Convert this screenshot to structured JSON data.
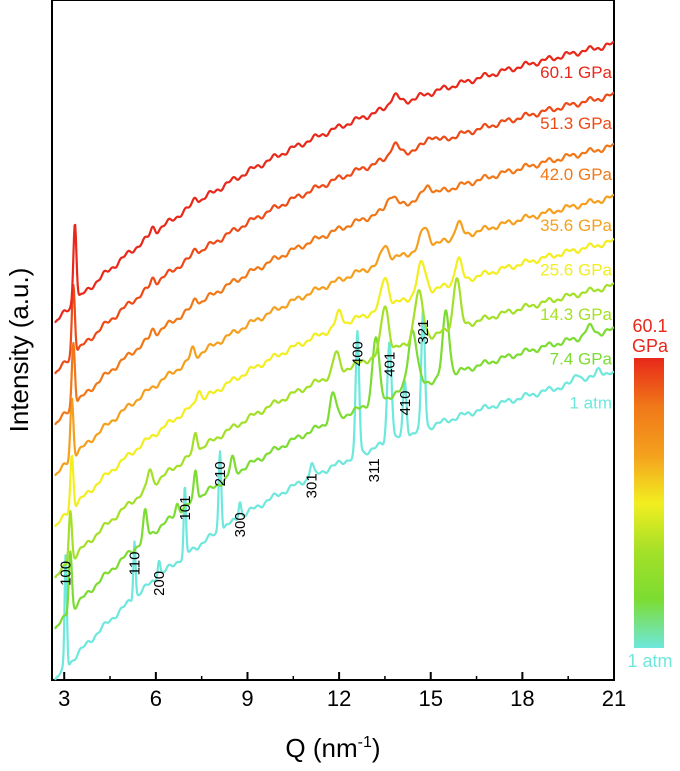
{
  "chart_data": {
    "type": "line",
    "xlabel": "Q (nm",
    "xlabel_sup": "-1",
    "xlabel_end": ")",
    "ylabel": "Intensity (a.u.)",
    "xlim": [
      2.6,
      21
    ],
    "ylim": [
      0,
      10
    ],
    "x_ticks": [
      3,
      6,
      9,
      12,
      15,
      18,
      21
    ],
    "x_tick_labels": [
      "3",
      "6",
      "9",
      "12",
      "15",
      "18",
      "21"
    ],
    "grid": false,
    "series": [
      {
        "name": "1 atm",
        "color": "#6ee8dc",
        "baseline": 0.0,
        "rise": 3.6,
        "start": 2.7,
        "end": 21,
        "peaks": [
          [
            3.05,
            1.7,
            0.05
          ],
          [
            5.3,
            0.85,
            0.05
          ],
          [
            6.1,
            0.25,
            0.06
          ],
          [
            6.95,
            1.0,
            0.05
          ],
          [
            8.1,
            1.2,
            0.06
          ],
          [
            8.75,
            0.25,
            0.06
          ],
          [
            11.1,
            0.2,
            0.08
          ],
          [
            12.6,
            1.8,
            0.08
          ],
          [
            13.65,
            1.5,
            0.1
          ],
          [
            14.15,
            0.8,
            0.08
          ],
          [
            14.75,
            1.75,
            0.08
          ],
          [
            19.8,
            0.15,
            0.15
          ],
          [
            20.5,
            0.15,
            0.15
          ]
        ]
      },
      {
        "name": "7.4 GPa",
        "color": "#7cdc32",
        "baseline": 0.75,
        "rise": 3.5,
        "start": 2.7,
        "end": 21,
        "peaks": [
          [
            3.2,
            0.9,
            0.07
          ],
          [
            5.65,
            0.4,
            0.09
          ],
          [
            6.7,
            0.15,
            0.08
          ],
          [
            7.3,
            0.45,
            0.08
          ],
          [
            8.5,
            0.25,
            0.1
          ],
          [
            11.8,
            0.4,
            0.14
          ],
          [
            13.2,
            0.95,
            0.15
          ],
          [
            14.4,
            0.85,
            0.2
          ],
          [
            15.5,
            0.95,
            0.15
          ],
          [
            20.2,
            0.12,
            0.2
          ]
        ]
      },
      {
        "name": "14.3 GPa",
        "color": "#a4e028",
        "baseline": 1.5,
        "rise": 3.4,
        "start": 2.7,
        "end": 21,
        "peaks": [
          [
            3.2,
            0.75,
            0.07
          ],
          [
            5.8,
            0.25,
            0.1
          ],
          [
            7.3,
            0.3,
            0.09
          ],
          [
            11.9,
            0.3,
            0.14
          ],
          [
            13.5,
            0.7,
            0.17
          ],
          [
            14.6,
            0.7,
            0.2
          ],
          [
            15.85,
            0.75,
            0.15
          ]
        ]
      },
      {
        "name": "25.6 GPa",
        "color": "#f2ee20",
        "baseline": 2.25,
        "rise": 3.3,
        "start": 2.7,
        "end": 21,
        "peaks": [
          [
            3.25,
            0.8,
            0.07
          ],
          [
            7.4,
            0.2,
            0.1
          ],
          [
            12.0,
            0.2,
            0.15
          ],
          [
            13.5,
            0.45,
            0.17
          ],
          [
            14.7,
            0.45,
            0.2
          ],
          [
            15.9,
            0.35,
            0.15
          ]
        ]
      },
      {
        "name": "35.6 GPa",
        "color": "#f4a01e",
        "baseline": 3.0,
        "rise": 3.2,
        "start": 2.7,
        "end": 21,
        "peaks": [
          [
            3.25,
            0.9,
            0.07
          ],
          [
            7.2,
            0.15,
            0.1
          ],
          [
            13.5,
            0.25,
            0.17
          ],
          [
            14.8,
            0.3,
            0.2
          ],
          [
            15.9,
            0.22,
            0.15
          ]
        ]
      },
      {
        "name": "42.0 GPa",
        "color": "#f07818",
        "baseline": 3.75,
        "rise": 3.2,
        "start": 2.7,
        "end": 21,
        "peaks": [
          [
            3.3,
            0.95,
            0.07
          ],
          [
            5.9,
            0.1,
            0.1
          ],
          [
            7.3,
            0.12,
            0.1
          ],
          [
            13.7,
            0.2,
            0.2
          ],
          [
            14.9,
            0.15,
            0.2
          ]
        ]
      },
      {
        "name": "51.3 GPa",
        "color": "#ec4a16",
        "baseline": 4.5,
        "rise": 3.2,
        "start": 2.7,
        "end": 21,
        "peaks": [
          [
            3.3,
            1.05,
            0.07
          ],
          [
            5.9,
            0.1,
            0.1
          ],
          [
            7.3,
            0.1,
            0.1
          ],
          [
            13.8,
            0.18,
            0.2
          ],
          [
            15.0,
            0.12,
            0.2
          ]
        ]
      },
      {
        "name": "60.1 GPa",
        "color": "#e8281a",
        "baseline": 5.25,
        "rise": 3.2,
        "start": 2.7,
        "end": 21,
        "peaks": [
          [
            3.35,
            1.2,
            0.07
          ],
          [
            5.9,
            0.1,
            0.1
          ],
          [
            7.3,
            0.1,
            0.1
          ],
          [
            13.8,
            0.15,
            0.2
          ]
        ]
      }
    ],
    "peak_labels": [
      {
        "text": "100",
        "q": 3.05
      },
      {
        "text": "110",
        "q": 5.3
      },
      {
        "text": "200",
        "q": 6.1
      },
      {
        "text": "101",
        "q": 6.95
      },
      {
        "text": "210",
        "q": 8.1
      },
      {
        "text": "300",
        "q": 8.75
      },
      {
        "text": "301",
        "q": 11.1
      },
      {
        "text": "400",
        "q": 12.6
      },
      {
        "text": "311",
        "q": 13.15
      },
      {
        "text": "401",
        "q": 13.65
      },
      {
        "text": "410",
        "q": 14.15
      },
      {
        "text": "321",
        "q": 14.75
      }
    ],
    "colorbar": {
      "top_label_line1": "60.1",
      "top_label_line2": "GPa",
      "bottom_label": "1 atm",
      "colors": [
        "#e8281a",
        "#f07818",
        "#f4a01e",
        "#f2ee20",
        "#a4e028",
        "#7cdc32",
        "#6ee8dc"
      ]
    }
  }
}
